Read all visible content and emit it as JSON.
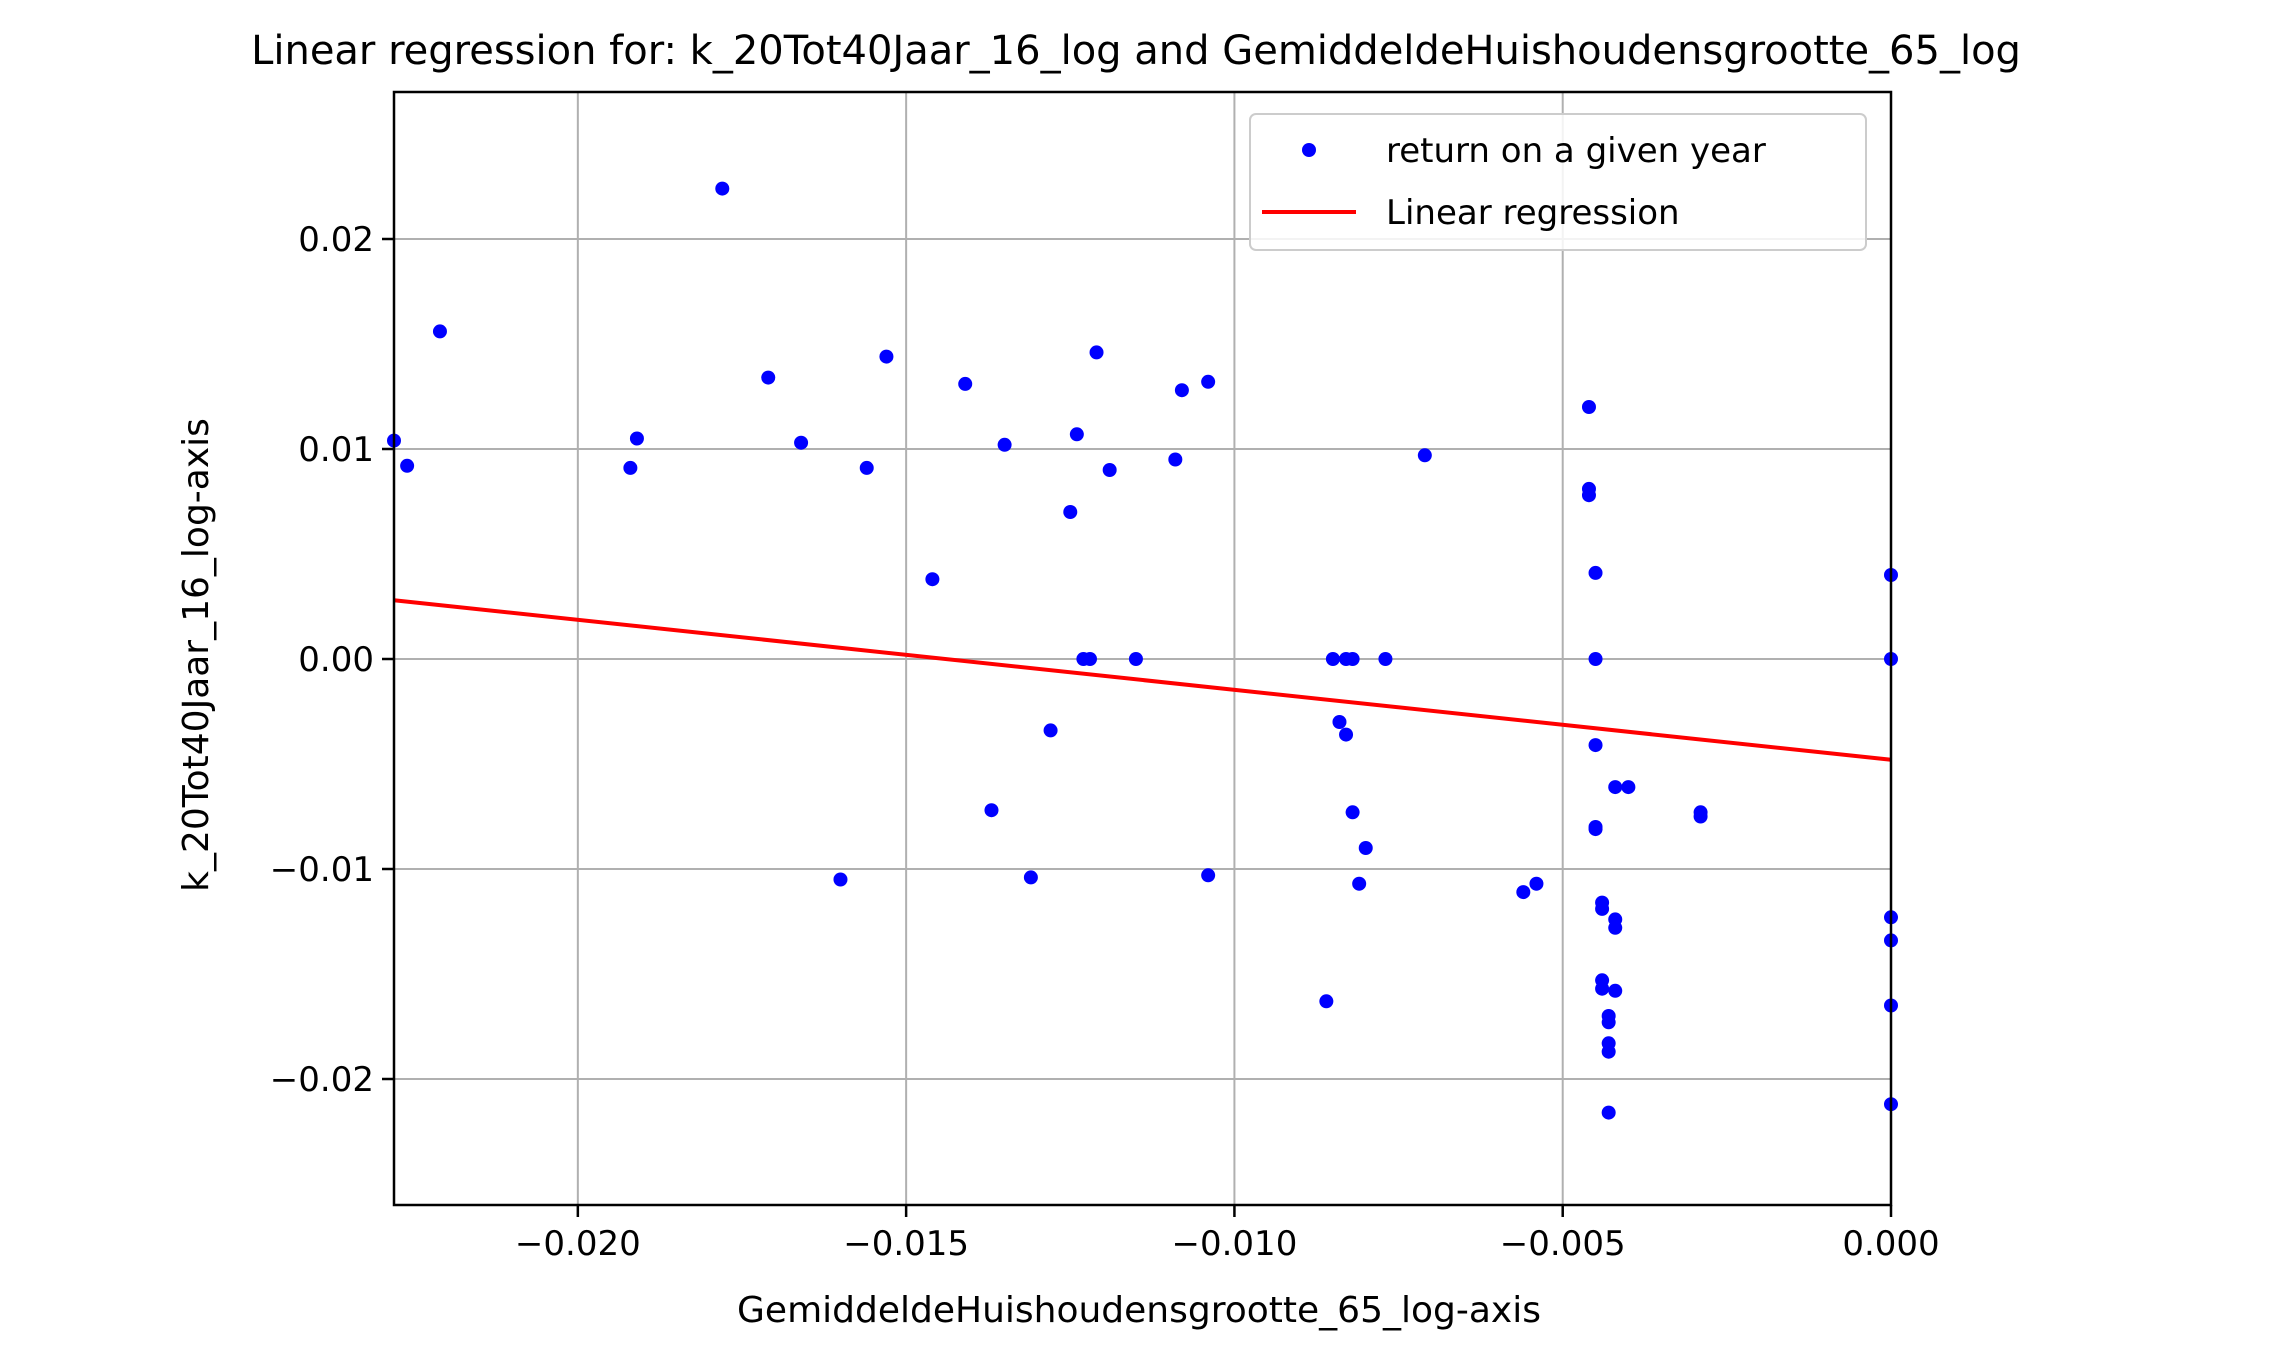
{
  "chart_data": {
    "type": "scatter",
    "title": "Linear regression for: k_20Tot40Jaar_16_log and GemiddeldeHuishoudensgrootte_65_log",
    "xlabel": "GemiddeldeHuishoudensgrootte_65_log-axis",
    "ylabel": "k_20Tot40Jaar_16_log-axis",
    "xlim": [
      -0.0228,
      0.0
    ],
    "ylim": [
      -0.026,
      0.027
    ],
    "xticks": [
      -0.02,
      -0.015,
      -0.01,
      -0.005,
      0.0
    ],
    "xtick_labels": [
      "−0.020",
      "−0.015",
      "−0.010",
      "−0.005",
      "0.000"
    ],
    "yticks": [
      -0.02,
      -0.01,
      0.0,
      0.01,
      0.02
    ],
    "ytick_labels": [
      "−0.02",
      "−0.01",
      "0.00",
      "0.01",
      "0.02"
    ],
    "grid": true,
    "legend_position": "upper-right",
    "series": [
      {
        "name": "return on a given year",
        "kind": "scatter",
        "color": "#0000ff",
        "points": [
          [
            -0.0228,
            0.0104
          ],
          [
            -0.0226,
            0.0092
          ],
          [
            -0.0221,
            0.0156
          ],
          [
            -0.0192,
            0.0091
          ],
          [
            -0.0191,
            0.0105
          ],
          [
            -0.0178,
            0.0224
          ],
          [
            -0.0171,
            0.0134
          ],
          [
            -0.0166,
            0.0103
          ],
          [
            -0.016,
            -0.0105
          ],
          [
            -0.0156,
            0.0091
          ],
          [
            -0.0153,
            0.0144
          ],
          [
            -0.0146,
            0.0038
          ],
          [
            -0.0141,
            0.0131
          ],
          [
            -0.0137,
            -0.0072
          ],
          [
            -0.0135,
            0.0102
          ],
          [
            -0.0131,
            -0.0104
          ],
          [
            -0.0128,
            -0.0034
          ],
          [
            -0.0125,
            0.007
          ],
          [
            -0.0124,
            0.0107
          ],
          [
            -0.0123,
            0.0
          ],
          [
            -0.0122,
            0.0
          ],
          [
            -0.0121,
            0.0146
          ],
          [
            -0.0119,
            0.009
          ],
          [
            -0.0115,
            0.0
          ],
          [
            -0.0109,
            0.0095
          ],
          [
            -0.0108,
            0.0128
          ],
          [
            -0.0104,
            0.0132
          ],
          [
            -0.0104,
            -0.0103
          ],
          [
            -0.0086,
            -0.0163
          ],
          [
            -0.0085,
            0.0
          ],
          [
            -0.0084,
            -0.003
          ],
          [
            -0.0083,
            0.0
          ],
          [
            -0.0083,
            -0.0036
          ],
          [
            -0.0082,
            -0.0073
          ],
          [
            -0.0082,
            0.0
          ],
          [
            -0.0081,
            -0.0107
          ],
          [
            -0.008,
            -0.009
          ],
          [
            -0.0077,
            0.0
          ],
          [
            -0.0071,
            0.0097
          ],
          [
            -0.0056,
            -0.0111
          ],
          [
            -0.0054,
            -0.0107
          ],
          [
            -0.0046,
            0.012
          ],
          [
            -0.0046,
            0.0078
          ],
          [
            -0.0046,
            0.0081
          ],
          [
            -0.0045,
            0.0041
          ],
          [
            -0.0045,
            0.0
          ],
          [
            -0.0045,
            -0.0041
          ],
          [
            -0.0045,
            -0.008
          ],
          [
            -0.0045,
            -0.0081
          ],
          [
            -0.0044,
            -0.0119
          ],
          [
            -0.0044,
            -0.0116
          ],
          [
            -0.0044,
            -0.0157
          ],
          [
            -0.0044,
            -0.0153
          ],
          [
            -0.0043,
            -0.0187
          ],
          [
            -0.0043,
            -0.0183
          ],
          [
            -0.0043,
            -0.0216
          ],
          [
            -0.0043,
            -0.0173
          ],
          [
            -0.0043,
            -0.017
          ],
          [
            -0.0042,
            -0.0128
          ],
          [
            -0.0042,
            -0.0124
          ],
          [
            -0.0042,
            -0.0158
          ],
          [
            -0.0042,
            -0.0061
          ],
          [
            -0.004,
            -0.0061
          ],
          [
            -0.0029,
            -0.0075
          ],
          [
            -0.0029,
            -0.0073
          ],
          [
            0.0,
            0.004
          ],
          [
            0.0,
            0.0
          ],
          [
            0.0,
            -0.0123
          ],
          [
            0.0,
            -0.0134
          ],
          [
            0.0,
            -0.0165
          ],
          [
            0.0,
            -0.0212
          ]
        ]
      },
      {
        "name": "Linear regression",
        "kind": "line",
        "color": "#ff0000",
        "points": [
          [
            -0.0228,
            0.0028
          ],
          [
            0.0,
            -0.0048
          ]
        ]
      }
    ]
  }
}
